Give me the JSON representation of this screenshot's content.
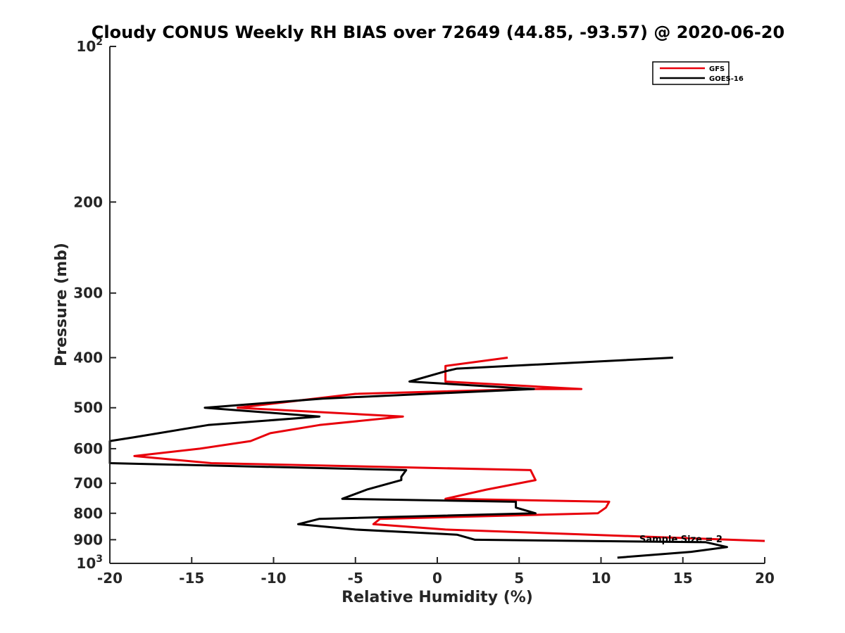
{
  "chart_data": {
    "type": "line",
    "title": "Cloudy CONUS Weekly RH BIAS over 72649 (44.85, -93.57) @ 2020-06-20",
    "xlabel": "Relative Humidity (%)",
    "ylabel": "Pressure (mb)",
    "xlim": [
      -20,
      20
    ],
    "ylim": [
      100,
      1000
    ],
    "yscale": "log",
    "yreverse": true,
    "x_ticks": [
      -20,
      -15,
      -10,
      -5,
      0,
      5,
      10,
      15,
      20
    ],
    "x_tick_labels": [
      "-20",
      "-15",
      "-10",
      "-5",
      "0",
      "5",
      "10",
      "15",
      "20"
    ],
    "y_ticks": [
      {
        "value": 100,
        "base": "10",
        "exp": "2"
      },
      {
        "value": 200,
        "label": "200"
      },
      {
        "value": 300,
        "label": "300"
      },
      {
        "value": 400,
        "label": "400"
      },
      {
        "value": 500,
        "label": "500"
      },
      {
        "value": 600,
        "label": "600"
      },
      {
        "value": 700,
        "label": "700"
      },
      {
        "value": 800,
        "label": "800"
      },
      {
        "value": 900,
        "label": "900"
      },
      {
        "value": 1000,
        "base": "10",
        "exp": "3"
      }
    ],
    "legend": {
      "position": "top-right",
      "entries": [
        "GFS",
        "GOES-16"
      ]
    },
    "annotation": "Sample Size = 2",
    "series": [
      {
        "name": "GFS",
        "color": "#e8000b",
        "points": [
          [
            4.3,
            400
          ],
          [
            0.5,
            415
          ],
          [
            0.5,
            445
          ],
          [
            8.8,
            460
          ],
          [
            5.8,
            460
          ],
          [
            -5,
            470
          ],
          [
            -12.2,
            500
          ],
          [
            -2.1,
            520
          ],
          [
            -7.2,
            540
          ],
          [
            -10.2,
            560
          ],
          [
            -11.4,
            580
          ],
          [
            -14.5,
            600
          ],
          [
            -18.5,
            620
          ],
          [
            -13.8,
            640
          ],
          [
            5.7,
            660
          ],
          [
            6,
            690
          ],
          [
            3,
            720
          ],
          [
            0.5,
            750
          ],
          [
            10.5,
            760
          ],
          [
            10.3,
            780
          ],
          [
            9.8,
            800
          ],
          [
            -3.5,
            820
          ],
          [
            -3.9,
            840
          ],
          [
            0.5,
            860
          ],
          [
            20,
            905
          ]
        ]
      },
      {
        "name": "GOES-16",
        "color": "#000000",
        "points": [
          [
            14.4,
            400
          ],
          [
            1.2,
            420
          ],
          [
            0.5,
            425
          ],
          [
            -1.7,
            445
          ],
          [
            5.9,
            460
          ],
          [
            -7,
            480
          ],
          [
            -14.2,
            500
          ],
          [
            -7.2,
            520
          ],
          [
            -14,
            540
          ],
          [
            -18.5,
            570
          ],
          [
            -20,
            580
          ],
          [
            -20,
            640
          ],
          [
            -1.9,
            660
          ],
          [
            -2.2,
            680
          ],
          [
            -2.2,
            690
          ],
          [
            -4.3,
            720
          ],
          [
            -5.8,
            750
          ],
          [
            4.8,
            760
          ],
          [
            4.8,
            780
          ],
          [
            6,
            800
          ],
          [
            -7.2,
            820
          ],
          [
            -8.5,
            840
          ],
          [
            -5,
            860
          ],
          [
            1.2,
            880
          ],
          [
            2.3,
            900
          ],
          [
            16.4,
            910
          ],
          [
            17.7,
            930
          ],
          [
            15.5,
            950
          ],
          [
            11,
            975
          ]
        ]
      }
    ]
  }
}
